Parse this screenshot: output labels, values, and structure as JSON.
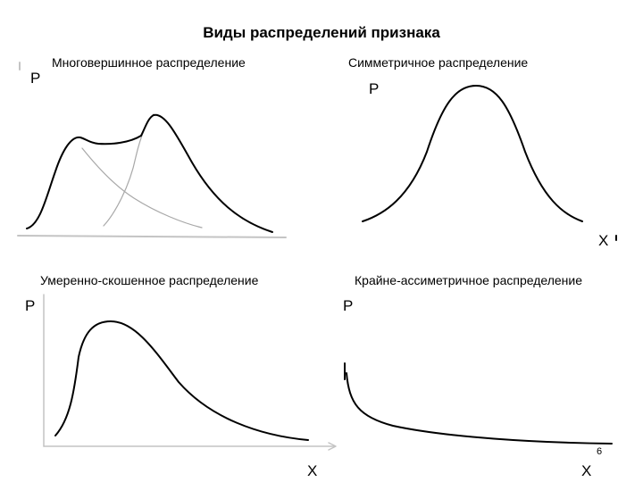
{
  "title": "Виды распределений признака",
  "panels": [
    {
      "label": "Многовершинное распределение",
      "y_letter": "P",
      "x_letter": ""
    },
    {
      "label": "Симметричное распределение",
      "y_letter": "P",
      "x_letter": "X"
    },
    {
      "label": "Умеренно-скошенное распределение",
      "y_letter": "P",
      "x_letter": "X"
    },
    {
      "label": "Крайне-ассиметричное распределение",
      "y_letter": "P",
      "x_letter": "X"
    }
  ],
  "page_number": "6",
  "colors": {
    "curve": "#000000",
    "component_curve": "#a8a8a8",
    "axis": "#c4c4c4",
    "text": "#000000"
  }
}
